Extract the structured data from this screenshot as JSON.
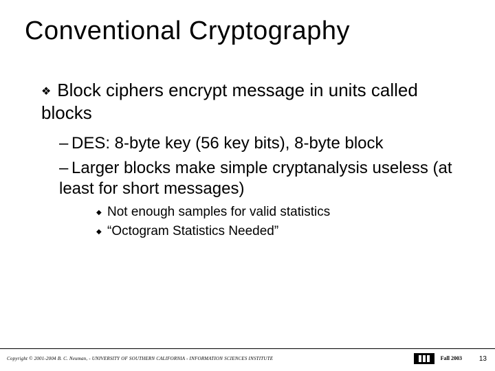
{
  "title": "Conventional Cryptography",
  "title_fontsize": 38,
  "body_fontsize_lvl1": 26,
  "body_fontsize_lvl2": 24,
  "body_fontsize_lvl3": 19,
  "text_color": "#000000",
  "background_color": "#ffffff",
  "bullet_lvl1_glyph": "❖",
  "bullet_lvl2_glyph": "–",
  "bullet_lvl3_glyph": "◆",
  "lvl1": {
    "text": "Block ciphers encrypt message in units called blocks"
  },
  "lvl2": [
    {
      "text": "DES: 8-byte key (56 key bits), 8-byte block"
    },
    {
      "text": "Larger blocks make simple cryptanalysis useless (at least for short messages)"
    }
  ],
  "lvl3": [
    {
      "text": "Not enough samples for valid statistics"
    },
    {
      "text": "“Octogram Statistics Needed”"
    }
  ],
  "footer": {
    "copyright": "Copyright © 2001-2004   B. C. Neuman, - UNIVERSITY OF SOUTHERN CALIFORNIA - INFORMATION SCIENCES INSTITUTE",
    "semester": "Fall 2003",
    "page": "13",
    "line_color": "#000000",
    "logo_bg": "#000000",
    "logo_fg": "#ffffff"
  }
}
